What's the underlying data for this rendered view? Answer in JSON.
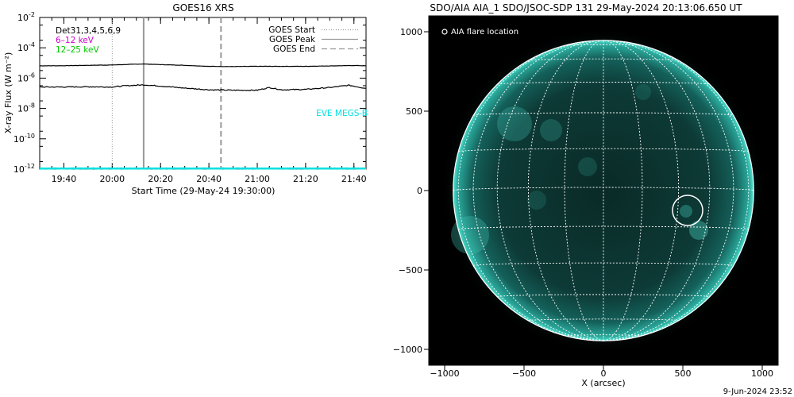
{
  "left_chart": {
    "title": "GOES16 XRS",
    "ylabel": "X-ray Flux (W m⁻²)",
    "xlabel": "Start Time (29-May-24 19:30:00)",
    "legend_left": [
      {
        "text": "Det31,3,4,5,6,9",
        "color": "#000000"
      },
      {
        "text": "6–12 keV",
        "color": "#d000d0"
      },
      {
        "text": "12–25 keV",
        "color": "#00c800"
      }
    ],
    "legend_right": [
      {
        "text": "GOES Start",
        "style": "dotted",
        "color": "#999999"
      },
      {
        "text": "GOES Peak",
        "style": "solid",
        "color": "#999999"
      },
      {
        "text": "GOES End",
        "style": "dashed",
        "color": "#999999"
      }
    ],
    "eve_label": "EVE MEGS-B",
    "eve_color": "#00e0e0"
  },
  "chart_data": [
    {
      "type": "line",
      "title": "GOES16 XRS",
      "xlabel": "Start Time (29-May-24 19:30:00)",
      "ylabel": "X-ray Flux (W m⁻²)",
      "y_scale": "log",
      "ylim": [
        1e-12,
        0.01
      ],
      "xlim": [
        "19:30",
        "21:45"
      ],
      "x_ticks": [
        "19:40",
        "20:00",
        "20:20",
        "20:40",
        "21:00",
        "21:20",
        "21:40"
      ],
      "y_tick_exponents": [
        -12,
        -10,
        -8,
        -6,
        -4,
        -2
      ],
      "markers": {
        "goes_start": "20:00",
        "goes_peak": "20:13",
        "goes_end": "20:45"
      },
      "series": [
        {
          "name": "",
          "color": "#000000",
          "x": [
            "19:30",
            "19:40",
            "19:50",
            "20:00",
            "20:10",
            "20:13",
            "20:20",
            "20:30",
            "20:40",
            "20:50",
            "21:00",
            "21:10",
            "21:20",
            "21:30",
            "21:40",
            "21:45"
          ],
          "y": [
            6.5e-06,
            6.6e-06,
            7e-06,
            7.4e-06,
            8.3e-06,
            8.5e-06,
            7.8e-06,
            7e-06,
            6e-06,
            5.8e-06,
            6e-06,
            6e-06,
            6e-06,
            6.4e-06,
            6.8e-06,
            6.5e-06
          ]
        },
        {
          "name": "",
          "color": "#000000",
          "x": [
            "19:30",
            "19:40",
            "19:50",
            "20:00",
            "20:05",
            "20:13",
            "20:20",
            "20:30",
            "20:40",
            "20:50",
            "21:00",
            "21:05",
            "21:10",
            "21:20",
            "21:30",
            "21:38",
            "21:45"
          ],
          "y": [
            2.6e-07,
            2.6e-07,
            2.7e-07,
            2.6e-07,
            3.1e-07,
            3.6e-07,
            3e-07,
            2.2e-07,
            1.7e-07,
            1.6e-07,
            1.6e-07,
            2.4e-07,
            1.7e-07,
            1.8e-07,
            2.4e-07,
            3.4e-07,
            2.1e-07
          ]
        },
        {
          "name": "",
          "color": "#00e0e0",
          "x": [
            "19:30",
            "21:45"
          ],
          "y": [
            1.1e-12,
            1.1e-12
          ]
        }
      ]
    },
    {
      "type": "scatter",
      "title": "SDO/AIA AIA_1 SDO/JSOC-SDP 131 29-May-2024 20:13:06.650 UT",
      "xlabel": "X (arcsec)",
      "ylabel": "",
      "xlim": [
        -1100,
        1100
      ],
      "ylim": [
        -1100,
        1100
      ],
      "x_ticks": [
        -1000,
        -500,
        0,
        500,
        1000
      ],
      "y_ticks": [
        -1000,
        -500,
        0,
        500,
        1000
      ],
      "solar_radius_arcsec": 946,
      "grid": "heliographic 15°",
      "legend": "AIA flare location",
      "flare_location": {
        "x": 530,
        "y": -125
      },
      "footer": "9-Jun-2024 23:52"
    }
  ]
}
